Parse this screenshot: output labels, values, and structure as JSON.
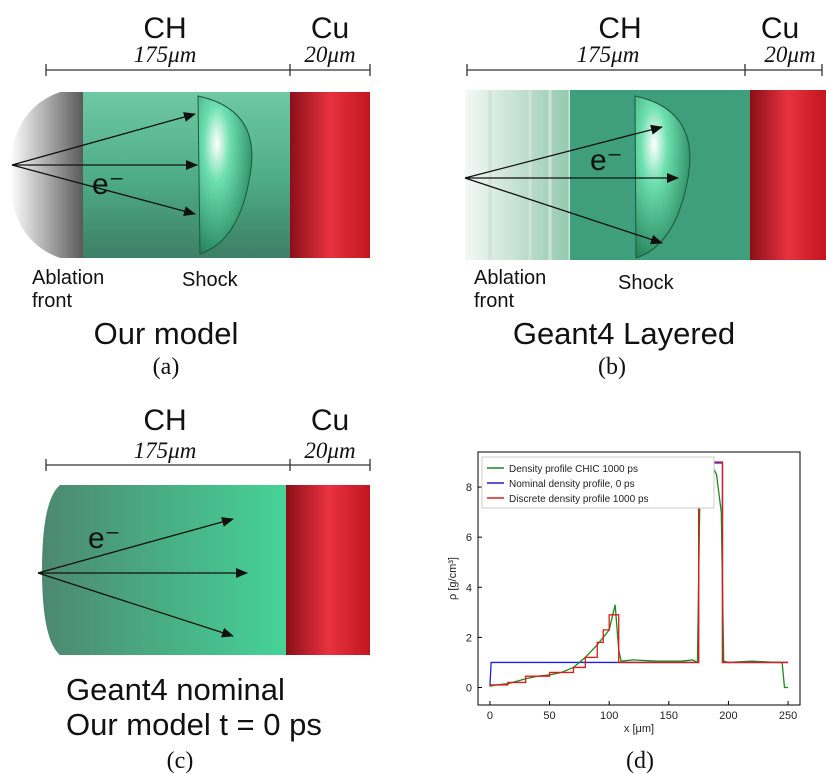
{
  "panels": [
    {
      "material_1": "CH",
      "thickness_1": "175μm",
      "material_2": "Cu",
      "thickness_2": "20μm",
      "electron": "e⁻",
      "ablation": [
        "Ablation",
        "front"
      ],
      "shock": "Shock",
      "caption": [
        "Our model"
      ],
      "label": "(a)"
    },
    {
      "material_1": "CH",
      "thickness_1": "175μm",
      "material_2": "Cu",
      "thickness_2": "20μm",
      "electron": "e⁻",
      "ablation": [
        "Ablation",
        "front"
      ],
      "shock": "Shock",
      "caption": [
        "Geant4 Layered"
      ],
      "label": "(b)"
    },
    {
      "material_1": "CH",
      "thickness_1": "175μm",
      "material_2": "Cu",
      "thickness_2": "20μm",
      "electron": "e⁻",
      "caption": [
        "Geant4 nominal",
        "Our model t = 0 ps"
      ],
      "label": "(c)"
    }
  ],
  "chart_data": {
    "type": "line",
    "label": "(d)",
    "x_label": "x [μm]",
    "y_label": "ρ [g/cm³]",
    "xlim": [
      -10,
      260
    ],
    "ylim": [
      -0.7,
      9.4
    ],
    "xticks": [
      0,
      50,
      100,
      150,
      200,
      250
    ],
    "yticks": [
      0,
      2,
      4,
      6,
      8
    ],
    "legend": "upper left",
    "series": [
      {
        "name": "Density profile CHIC 1000 ps",
        "color": "#1a8a1a",
        "x": [
          0,
          5,
          15,
          30,
          40,
          50,
          60,
          70,
          80,
          90,
          100,
          105,
          108,
          110,
          120,
          140,
          160,
          170,
          174,
          176,
          180,
          185,
          190,
          194,
          196,
          200,
          220,
          240,
          245,
          247,
          250
        ],
        "values": [
          0.05,
          0.1,
          0.15,
          0.35,
          0.45,
          0.5,
          0.6,
          0.8,
          1.2,
          1.7,
          2.3,
          3.3,
          1.5,
          1.05,
          1.1,
          1.05,
          1.05,
          1.1,
          1.0,
          7.5,
          8.0,
          9.0,
          8.5,
          7.0,
          1.05,
          1.0,
          1.05,
          1.0,
          1.0,
          0.0,
          0.0
        ]
      },
      {
        "name": "Nominal density profile, 0 ps",
        "color": "#1f1fdd",
        "x": [
          0,
          1,
          175,
          175,
          195,
          195,
          250
        ],
        "values": [
          0.05,
          1,
          1,
          8.96,
          8.96,
          1,
          1
        ]
      },
      {
        "name": "Discrete density profile 1000 ps",
        "color": "#e01a1a",
        "x": [
          0,
          15,
          15,
          30,
          30,
          50,
          50,
          70,
          70,
          80,
          80,
          90,
          90,
          95,
          95,
          100,
          100,
          108,
          108,
          175,
          175,
          195,
          195,
          250
        ],
        "values": [
          0.1,
          0.1,
          0.2,
          0.2,
          0.45,
          0.45,
          0.6,
          0.6,
          0.8,
          0.8,
          1.2,
          1.2,
          1.8,
          1.8,
          2.3,
          2.3,
          2.9,
          2.9,
          1.0,
          1.0,
          9.0,
          9.0,
          1.0,
          1.0
        ]
      }
    ]
  }
}
